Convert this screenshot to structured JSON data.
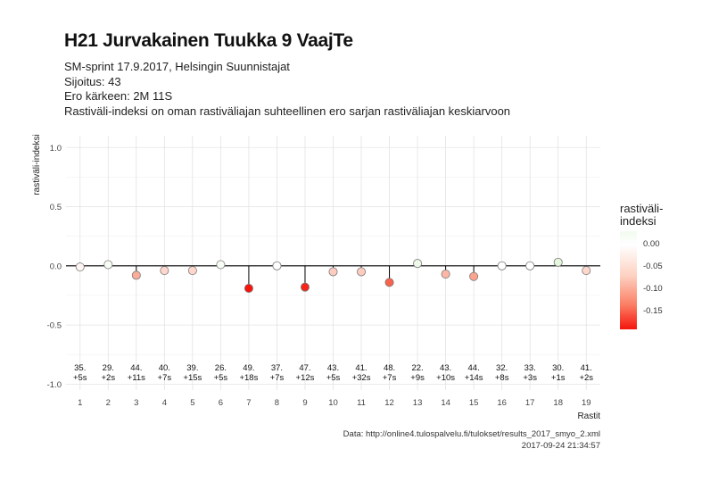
{
  "title": "H21 Jurvakainen Tuukka 9 VaajTe",
  "subtitle_lines": [
    "SM-sprint 17.9.2017, Helsingin Suunnistajat",
    "Sijoitus: 43",
    "Ero kärkeen: 2M 11S",
    "Rastiväli-indeksi on oman rastiväliajan suhteellinen ero sarjan rastiväliajan keskiarvoon"
  ],
  "caption_lines": [
    "Data: http://online4.tulospalvelu.fi/tulokset/results_2017_smyo_2.xml",
    "2017-09-24 21:34:57"
  ],
  "legend": {
    "title_lines": [
      "rastiväli-",
      "indeksi"
    ],
    "ticks": [
      {
        "label": "0.00",
        "value": 0.0
      },
      {
        "label": "-0.05",
        "value": -0.05
      },
      {
        "label": "-0.10",
        "value": -0.1
      },
      {
        "label": "-0.15",
        "value": -0.15
      }
    ]
  },
  "chart_data": {
    "type": "scatter",
    "xlabel": "Rastit",
    "ylabel": "rastiväli-indeksi",
    "xlim": [
      0.5,
      19.5
    ],
    "ylim": [
      -1.05,
      1.1
    ],
    "yticks": [
      {
        "value": 1.0,
        "label": "1.0"
      },
      {
        "value": 0.5,
        "label": "0.5"
      },
      {
        "value": 0.0,
        "label": "0.0"
      },
      {
        "value": -0.5,
        "label": "-0.5"
      },
      {
        "value": -1.0,
        "label": "-1.0"
      }
    ],
    "grid": true,
    "points": [
      {
        "x": 1,
        "y": -0.01,
        "rank": "35.",
        "diff": "+5s"
      },
      {
        "x": 2,
        "y": 0.01,
        "rank": "29.",
        "diff": "+2s"
      },
      {
        "x": 3,
        "y": -0.08,
        "rank": "44.",
        "diff": "+11s"
      },
      {
        "x": 4,
        "y": -0.04,
        "rank": "40.",
        "diff": "+7s"
      },
      {
        "x": 5,
        "y": -0.04,
        "rank": "39.",
        "diff": "+15s"
      },
      {
        "x": 6,
        "y": 0.01,
        "rank": "26.",
        "diff": "+5s"
      },
      {
        "x": 7,
        "y": -0.19,
        "rank": "49.",
        "diff": "+18s"
      },
      {
        "x": 8,
        "y": 0.0,
        "rank": "37.",
        "diff": "+7s"
      },
      {
        "x": 9,
        "y": -0.18,
        "rank": "47.",
        "diff": "+12s"
      },
      {
        "x": 10,
        "y": -0.05,
        "rank": "43.",
        "diff": "+5s"
      },
      {
        "x": 11,
        "y": -0.05,
        "rank": "41.",
        "diff": "+32s"
      },
      {
        "x": 12,
        "y": -0.14,
        "rank": "48.",
        "diff": "+7s"
      },
      {
        "x": 13,
        "y": 0.02,
        "rank": "22.",
        "diff": "+9s"
      },
      {
        "x": 14,
        "y": -0.07,
        "rank": "43.",
        "diff": "+10s"
      },
      {
        "x": 15,
        "y": -0.09,
        "rank": "44.",
        "diff": "+14s"
      },
      {
        "x": 16,
        "y": 0.0,
        "rank": "32.",
        "diff": "+8s"
      },
      {
        "x": 17,
        "y": 0.0,
        "rank": "33.",
        "diff": "+3s"
      },
      {
        "x": 18,
        "y": 0.03,
        "rank": "30.",
        "diff": "+1s"
      },
      {
        "x": 19,
        "y": -0.04,
        "rank": "41.",
        "diff": "+2s"
      }
    ],
    "colors": {
      "green": "#e6f7de",
      "white": "#ffffff",
      "red": "#f5150c",
      "baseline": "#000000",
      "grid": "#e3e3e3"
    }
  }
}
